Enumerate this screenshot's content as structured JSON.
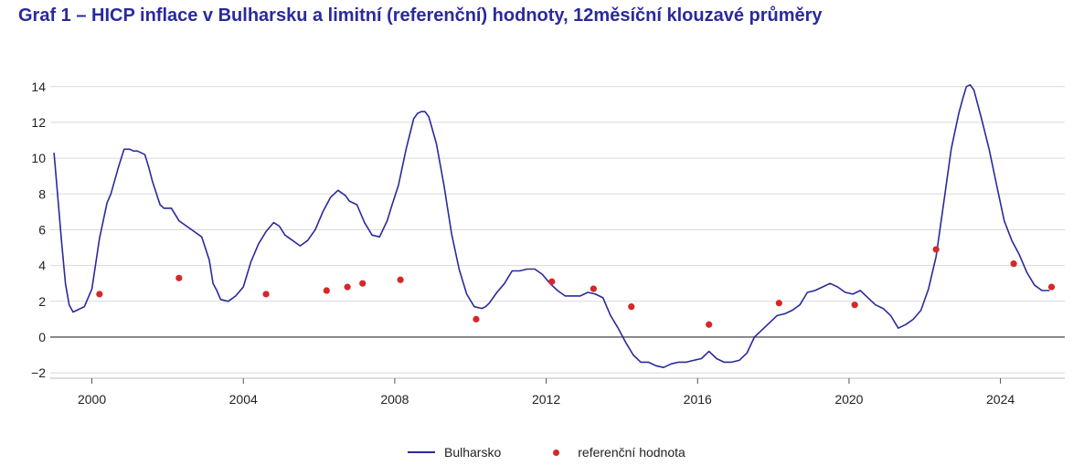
{
  "title": "Graf 1 – HICP inflace v Bulharsku a limitní (referenční) hodnoty, 12měsíční klouzavé průměry",
  "colors": {
    "title": "#2a2a9c",
    "line": "#2a2a9c",
    "dots": "#d62728",
    "grid": "#d9d9d9",
    "zero": "#555555"
  },
  "chart_data": {
    "type": "line",
    "title": "",
    "xlabel": "",
    "ylabel": "",
    "xlim": [
      1998.9,
      2025.7
    ],
    "ylim": [
      -2.3,
      14.6
    ],
    "yticks": [
      -2,
      0,
      2,
      4,
      6,
      8,
      10,
      12,
      14
    ],
    "ytick_labels": [
      "−2",
      "0",
      "2",
      "4",
      "6",
      "8",
      "10",
      "12",
      "14"
    ],
    "xticks": [
      2000,
      2004,
      2008,
      2012,
      2016,
      2020,
      2024
    ],
    "xtick_labels": [
      "2000",
      "2004",
      "2008",
      "2012",
      "2016",
      "2020",
      "2024"
    ],
    "grid": true,
    "legend": {
      "position": "bottom-center",
      "entries": [
        "Bulharsko",
        "referenční hodnota"
      ]
    },
    "series": [
      {
        "name": "Bulharsko",
        "type": "line",
        "x": [
          1999.0,
          1999.1,
          1999.2,
          1999.3,
          1999.4,
          1999.5,
          1999.6,
          1999.8,
          2000.0,
          2000.2,
          2000.4,
          2000.5,
          2000.7,
          2000.85,
          2001.0,
          2001.1,
          2001.2,
          2001.4,
          2001.5,
          2001.6,
          2001.8,
          2001.9,
          2002.0,
          2002.1,
          2002.3,
          2002.5,
          2002.7,
          2002.9,
          2003.1,
          2003.2,
          2003.3,
          2003.4,
          2003.6,
          2003.8,
          2004.0,
          2004.2,
          2004.4,
          2004.6,
          2004.8,
          2004.95,
          2005.1,
          2005.3,
          2005.5,
          2005.7,
          2005.9,
          2006.1,
          2006.3,
          2006.5,
          2006.7,
          2006.8,
          2007.0,
          2007.2,
          2007.4,
          2007.6,
          2007.8,
          2007.9,
          2008.1,
          2008.3,
          2008.5,
          2008.6,
          2008.7,
          2008.8,
          2008.9,
          2009.1,
          2009.3,
          2009.5,
          2009.7,
          2009.9,
          2010.1,
          2010.3,
          2010.4,
          2010.5,
          2010.7,
          2010.9,
          2011.1,
          2011.3,
          2011.5,
          2011.7,
          2011.9,
          2012.1,
          2012.3,
          2012.5,
          2012.7,
          2012.9,
          2013.1,
          2013.3,
          2013.5,
          2013.7,
          2013.9,
          2014.1,
          2014.3,
          2014.5,
          2014.7,
          2014.9,
          2015.1,
          2015.3,
          2015.5,
          2015.7,
          2015.9,
          2016.1,
          2016.3,
          2016.5,
          2016.7,
          2016.9,
          2017.1,
          2017.3,
          2017.5,
          2017.7,
          2017.9,
          2018.1,
          2018.3,
          2018.5,
          2018.7,
          2018.9,
          2019.1,
          2019.3,
          2019.5,
          2019.7,
          2019.9,
          2020.1,
          2020.3,
          2020.5,
          2020.7,
          2020.9,
          2021.1,
          2021.3,
          2021.5,
          2021.7,
          2021.9,
          2022.1,
          2022.3,
          2022.5,
          2022.7,
          2022.9,
          2023.0,
          2023.1,
          2023.2,
          2023.3,
          2023.5,
          2023.7,
          2023.9,
          2024.1,
          2024.3,
          2024.5,
          2024.7,
          2024.9,
          2025.1,
          2025.3
        ],
        "y": [
          10.3,
          7.8,
          5.3,
          3.0,
          1.8,
          1.4,
          1.5,
          1.7,
          2.7,
          5.5,
          7.5,
          8.0,
          9.5,
          10.5,
          10.5,
          10.4,
          10.4,
          10.2,
          9.5,
          8.7,
          7.4,
          7.2,
          7.2,
          7.2,
          6.5,
          6.2,
          5.9,
          5.6,
          4.3,
          3.0,
          2.6,
          2.1,
          2.0,
          2.3,
          2.8,
          4.2,
          5.2,
          5.9,
          6.4,
          6.2,
          5.7,
          5.4,
          5.1,
          5.4,
          6.0,
          7.0,
          7.8,
          8.2,
          7.9,
          7.6,
          7.4,
          6.4,
          5.7,
          5.6,
          6.5,
          7.2,
          8.5,
          10.5,
          12.2,
          12.5,
          12.6,
          12.6,
          12.3,
          10.8,
          8.5,
          5.8,
          3.8,
          2.4,
          1.7,
          1.6,
          1.7,
          1.9,
          2.5,
          3.0,
          3.7,
          3.7,
          3.8,
          3.8,
          3.5,
          3.0,
          2.6,
          2.3,
          2.3,
          2.3,
          2.5,
          2.4,
          2.2,
          1.2,
          0.5,
          -0.3,
          -1.0,
          -1.4,
          -1.4,
          -1.6,
          -1.7,
          -1.5,
          -1.4,
          -1.4,
          -1.3,
          -1.2,
          -0.8,
          -1.2,
          -1.4,
          -1.4,
          -1.3,
          -0.9,
          0.0,
          0.4,
          0.8,
          1.2,
          1.3,
          1.5,
          1.8,
          2.5,
          2.6,
          2.8,
          3.0,
          2.8,
          2.5,
          2.4,
          2.6,
          2.2,
          1.8,
          1.6,
          1.2,
          0.5,
          0.7,
          1.0,
          1.5,
          2.7,
          4.5,
          7.5,
          10.5,
          12.5,
          13.3,
          14.0,
          14.1,
          13.8,
          12.2,
          10.5,
          8.5,
          6.5,
          5.4,
          4.6,
          3.6,
          2.9,
          2.6,
          2.6
        ]
      },
      {
        "name": "referenční hodnota",
        "type": "scatter",
        "x": [
          2000.2,
          2002.3,
          2004.6,
          2006.2,
          2006.75,
          2007.15,
          2008.15,
          2010.15,
          2012.15,
          2013.25,
          2014.25,
          2016.3,
          2018.15,
          2020.15,
          2022.3,
          2024.35,
          2025.35
        ],
        "y": [
          2.4,
          3.3,
          2.4,
          2.6,
          2.8,
          3.0,
          3.2,
          1.0,
          3.1,
          2.7,
          1.7,
          0.7,
          1.9,
          1.8,
          4.9,
          4.1,
          2.8
        ]
      }
    ]
  }
}
